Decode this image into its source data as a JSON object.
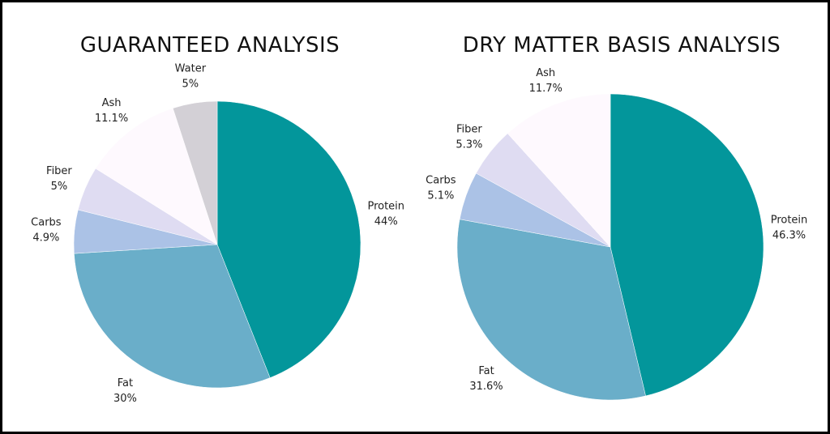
{
  "chart_data": [
    {
      "type": "pie",
      "title": "GUARANTEED ANALYSIS",
      "slices": [
        {
          "label": "Protein",
          "value": 44,
          "value_label": "44%",
          "color": "#03969b"
        },
        {
          "label": "Fat",
          "value": 30,
          "value_label": "30%",
          "color": "#6aaec9"
        },
        {
          "label": "Carbs",
          "value": 4.9,
          "value_label": "4.9%",
          "color": "#abc2e6"
        },
        {
          "label": "Fiber",
          "value": 5,
          "value_label": "5%",
          "color": "#dfdcf2"
        },
        {
          "label": "Ash",
          "value": 11.1,
          "value_label": "11.1%",
          "color": "#fef9fe"
        },
        {
          "label": "Water",
          "value": 5,
          "value_label": "5%",
          "color": "#d3d0d6"
        }
      ]
    },
    {
      "type": "pie",
      "title": "DRY MATTER BASIS ANALYSIS",
      "slices": [
        {
          "label": "Protein",
          "value": 46.3,
          "value_label": "46.3%",
          "color": "#03969b"
        },
        {
          "label": "Fat",
          "value": 31.6,
          "value_label": "31.6%",
          "color": "#6aaec9"
        },
        {
          "label": "Carbs",
          "value": 5.1,
          "value_label": "5.1%",
          "color": "#abc2e6"
        },
        {
          "label": "Fiber",
          "value": 5.3,
          "value_label": "5.3%",
          "color": "#dfdcf2"
        },
        {
          "label": "Ash",
          "value": 11.7,
          "value_label": "11.7%",
          "color": "#fef9fe"
        }
      ]
    }
  ]
}
